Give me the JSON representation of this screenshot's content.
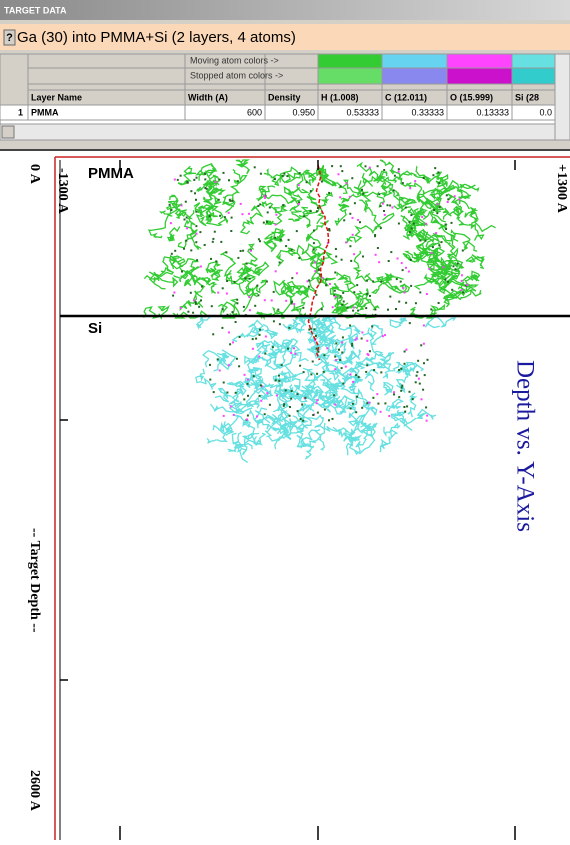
{
  "window": {
    "title": "TARGET DATA",
    "help": "?",
    "heading": "Ga (30) into PMMA+Si (2 layers, 4 atoms)"
  },
  "table": {
    "moving_label": "Moving atom colors ->",
    "stopped_label": "Stopped atom colors ->",
    "moving_colors": [
      "#33cc33",
      "#66d4f0",
      "#ff44ff",
      "#66e0e0"
    ],
    "stopped_colors": [
      "#66dd66",
      "#8888ee",
      "#cc11cc",
      "#33cccc"
    ],
    "headers": [
      "Layer Name",
      "Width (A)",
      "Density",
      "H (1.008)",
      "C (12.011)",
      "O (15.999)",
      "Si (28"
    ],
    "rows": [
      [
        "1",
        "PMMA",
        "600",
        "0.950",
        "0.53333",
        "0.33333",
        "0.13333",
        "0.0"
      ]
    ]
  },
  "plot": {
    "title": "Depth vs. Y-Axis",
    "depth_label": "-- Target Depth --",
    "depth_start": "0 A",
    "depth_end": "2600 A",
    "y_min": "-1300 A",
    "y_max": "+1300 A",
    "layers": [
      "PMMA",
      "Si"
    ]
  }
}
